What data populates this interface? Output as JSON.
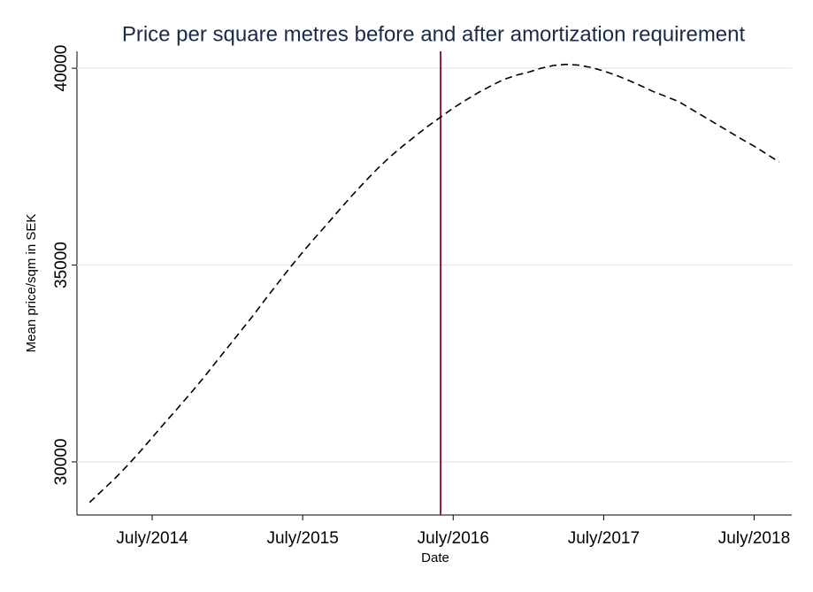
{
  "chart_data": {
    "type": "line",
    "title": "Price per square metres before and after amortization requirement",
    "xlabel": "Date",
    "ylabel": "Mean price/sqm in SEK",
    "x": [
      "2014-02",
      "2014-03",
      "2014-04",
      "2014-05",
      "2014-06",
      "2014-07",
      "2014-08",
      "2014-09",
      "2014-10",
      "2014-11",
      "2014-12",
      "2015-01",
      "2015-02",
      "2015-03",
      "2015-04",
      "2015-05",
      "2015-06",
      "2015-07",
      "2015-08",
      "2015-09",
      "2015-10",
      "2015-11",
      "2015-12",
      "2016-01",
      "2016-02",
      "2016-03",
      "2016-04",
      "2016-05",
      "2016-06",
      "2016-07",
      "2016-08",
      "2016-09",
      "2016-10",
      "2016-11",
      "2016-12",
      "2017-01",
      "2017-02",
      "2017-03",
      "2017-04",
      "2017-05",
      "2017-06",
      "2017-07",
      "2017-08",
      "2017-09",
      "2017-10",
      "2017-11",
      "2017-12",
      "2018-01",
      "2018-02",
      "2018-03",
      "2018-04",
      "2018-05",
      "2018-06",
      "2018-07",
      "2018-08",
      "2018-09"
    ],
    "values": [
      28970,
      29270,
      29570,
      29900,
      30250,
      30620,
      30990,
      31350,
      31720,
      32100,
      32500,
      32900,
      33300,
      33700,
      34120,
      34530,
      34940,
      35330,
      35700,
      36060,
      36430,
      36790,
      37130,
      37460,
      37760,
      38030,
      38280,
      38530,
      38760,
      38990,
      39190,
      39380,
      39550,
      39710,
      39820,
      39900,
      40000,
      40070,
      40100,
      40080,
      40020,
      39930,
      39820,
      39690,
      39550,
      39400,
      39280,
      39150,
      38960,
      38770,
      38580,
      38390,
      38200,
      38020,
      37820,
      37620
    ],
    "color": "#000000",
    "line_style": "dashed",
    "vline": {
      "x": "2016-06",
      "color": "#8b1a3e"
    },
    "xlim": [
      "2014-01",
      "2018-10"
    ],
    "xticks": [
      {
        "value": "2014-07",
        "label": "July/2014"
      },
      {
        "value": "2015-07",
        "label": "July/2015"
      },
      {
        "value": "2016-07",
        "label": "July/2016"
      },
      {
        "value": "2017-07",
        "label": "July/2017"
      },
      {
        "value": "2018-07",
        "label": "July/2018"
      }
    ],
    "ylim": [
      28650,
      40430
    ],
    "yticks": [
      30000,
      35000,
      40000
    ],
    "grid": true
  }
}
